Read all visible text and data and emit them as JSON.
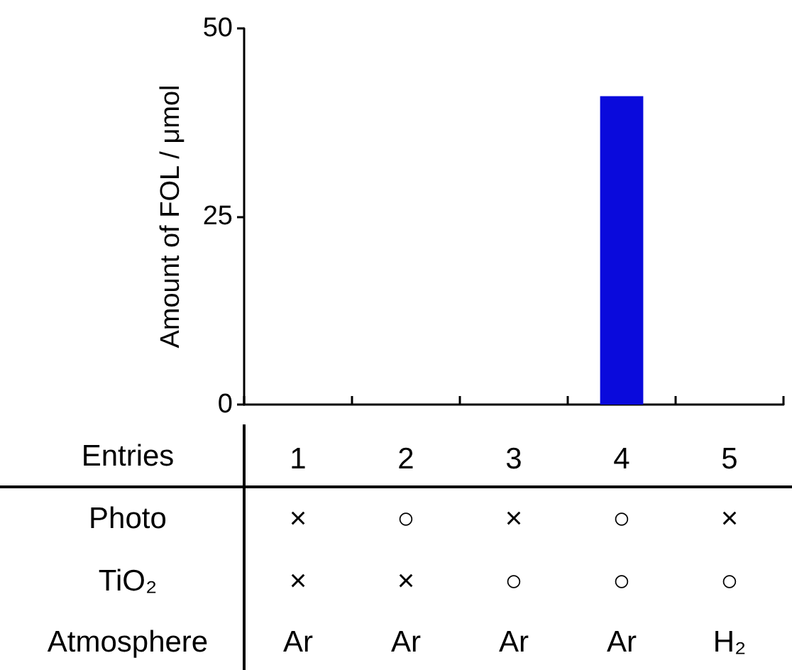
{
  "chart_data": {
    "type": "bar",
    "ylabel": "Amount of FOL / μmol",
    "xlabel": "Entries",
    "categories": [
      "1",
      "2",
      "3",
      "4",
      "5"
    ],
    "values": [
      0,
      0,
      0,
      41,
      0
    ],
    "color": "#0a0adc",
    "ylim": [
      0,
      50
    ],
    "yticks": [
      0,
      25,
      50
    ],
    "annotations": [
      "Photo",
      "×",
      "○",
      "×",
      "○",
      "×",
      "TiO₂",
      "×",
      "×",
      "○",
      "○",
      "○",
      "Atmosphere",
      "Ar",
      "Ar",
      "Ar",
      "Ar",
      "H₂"
    ]
  }
}
